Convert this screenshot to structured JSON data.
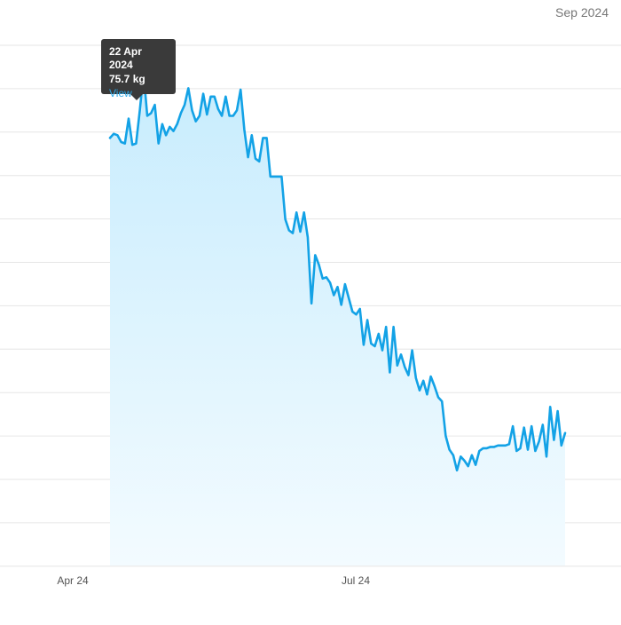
{
  "header": {
    "range_label": "Sep 2024"
  },
  "tooltip": {
    "date": "22 Apr 2024",
    "value": "75.7 kg",
    "link": "View"
  },
  "colors": {
    "line": "#13a2e6",
    "fill_top": "#c7ecfd",
    "fill_bottom": "#f3fbff",
    "grid": "#e6e6e6",
    "marker": "#e36a9a"
  },
  "chart_data": {
    "type": "area",
    "x_tick_labels": [
      "Apr 24",
      "Jul 24"
    ],
    "highlighted_point": {
      "x": "2024-04-22",
      "y": 75.7
    },
    "series": [
      {
        "values": [
          [
            "2024-04-13",
            71.0
          ],
          [
            "2024-04-14",
            71.3
          ],
          [
            "2024-04-15",
            71.2
          ],
          [
            "2024-04-16",
            70.7
          ],
          [
            "2024-04-17",
            70.6
          ],
          [
            "2024-04-18",
            72.4
          ],
          [
            "2024-04-19",
            70.5
          ],
          [
            "2024-04-20",
            70.6
          ],
          [
            "2024-04-21",
            73.0
          ],
          [
            "2024-04-22",
            75.7
          ],
          [
            "2024-04-23",
            72.6
          ],
          [
            "2024-04-24",
            72.8
          ],
          [
            "2024-04-25",
            73.4
          ],
          [
            "2024-04-26",
            70.6
          ],
          [
            "2024-04-27",
            72.0
          ],
          [
            "2024-04-28",
            71.2
          ],
          [
            "2024-04-29",
            71.8
          ],
          [
            "2024-04-30",
            71.5
          ],
          [
            "2024-05-01",
            72.0
          ],
          [
            "2024-05-02",
            72.8
          ],
          [
            "2024-05-03",
            73.4
          ],
          [
            "2024-05-04",
            74.6
          ],
          [
            "2024-05-05",
            73.0
          ],
          [
            "2024-05-06",
            72.2
          ],
          [
            "2024-05-07",
            72.6
          ],
          [
            "2024-05-08",
            74.2
          ],
          [
            "2024-05-09",
            72.7
          ],
          [
            "2024-05-10",
            74.0
          ],
          [
            "2024-05-11",
            74.0
          ],
          [
            "2024-05-12",
            73.1
          ],
          [
            "2024-05-13",
            72.6
          ],
          [
            "2024-05-14",
            74.0
          ],
          [
            "2024-05-15",
            72.6
          ],
          [
            "2024-05-16",
            72.6
          ],
          [
            "2024-05-17",
            73.0
          ],
          [
            "2024-05-18",
            74.5
          ],
          [
            "2024-05-19",
            71.6
          ],
          [
            "2024-05-20",
            69.6
          ],
          [
            "2024-05-21",
            71.2
          ],
          [
            "2024-05-22",
            69.5
          ],
          [
            "2024-05-23",
            69.3
          ],
          [
            "2024-05-24",
            71.0
          ],
          [
            "2024-05-25",
            71.0
          ],
          [
            "2024-05-26",
            68.2
          ],
          [
            "2024-05-27",
            68.2
          ],
          [
            "2024-05-28",
            68.2
          ],
          [
            "2024-05-29",
            68.2
          ],
          [
            "2024-05-30",
            65.1
          ],
          [
            "2024-05-31",
            64.3
          ],
          [
            "2024-06-01",
            64.1
          ],
          [
            "2024-06-02",
            65.6
          ],
          [
            "2024-06-03",
            64.2
          ],
          [
            "2024-06-04",
            65.6
          ],
          [
            "2024-06-05",
            63.8
          ],
          [
            "2024-06-06",
            59.0
          ],
          [
            "2024-06-07",
            62.5
          ],
          [
            "2024-06-08",
            61.8
          ],
          [
            "2024-06-09",
            60.8
          ],
          [
            "2024-06-10",
            60.9
          ],
          [
            "2024-06-11",
            60.5
          ],
          [
            "2024-06-12",
            59.6
          ],
          [
            "2024-06-13",
            60.2
          ],
          [
            "2024-06-14",
            58.9
          ],
          [
            "2024-06-15",
            60.4
          ],
          [
            "2024-06-16",
            59.4
          ],
          [
            "2024-06-17",
            58.4
          ],
          [
            "2024-06-18",
            58.2
          ],
          [
            "2024-06-19",
            58.6
          ],
          [
            "2024-06-20",
            56.0
          ],
          [
            "2024-06-21",
            57.8
          ],
          [
            "2024-06-22",
            56.1
          ],
          [
            "2024-06-23",
            55.9
          ],
          [
            "2024-06-24",
            56.8
          ],
          [
            "2024-06-25",
            55.6
          ],
          [
            "2024-06-26",
            57.3
          ],
          [
            "2024-06-27",
            54.0
          ],
          [
            "2024-06-28",
            57.3
          ],
          [
            "2024-06-29",
            54.5
          ],
          [
            "2024-06-30",
            55.3
          ],
          [
            "2024-07-01",
            54.4
          ],
          [
            "2024-07-02",
            53.8
          ],
          [
            "2024-07-03",
            55.6
          ],
          [
            "2024-07-04",
            53.6
          ],
          [
            "2024-07-05",
            52.7
          ],
          [
            "2024-07-06",
            53.4
          ],
          [
            "2024-07-07",
            52.4
          ],
          [
            "2024-07-08",
            53.7
          ],
          [
            "2024-07-09",
            53.0
          ],
          [
            "2024-07-10",
            52.2
          ],
          [
            "2024-07-11",
            51.9
          ],
          [
            "2024-07-12",
            49.4
          ],
          [
            "2024-07-13",
            48.4
          ],
          [
            "2024-07-14",
            48.0
          ],
          [
            "2024-07-15",
            46.9
          ],
          [
            "2024-07-16",
            47.9
          ],
          [
            "2024-07-17",
            47.6
          ],
          [
            "2024-07-18",
            47.2
          ],
          [
            "2024-07-19",
            48.0
          ],
          [
            "2024-07-20",
            47.3
          ],
          [
            "2024-07-21",
            48.3
          ],
          [
            "2024-07-22",
            48.5
          ],
          [
            "2024-07-23",
            48.5
          ],
          [
            "2024-07-24",
            48.6
          ],
          [
            "2024-07-25",
            48.6
          ],
          [
            "2024-07-26",
            48.7
          ],
          [
            "2024-07-27",
            48.7
          ],
          [
            "2024-07-28",
            48.7
          ],
          [
            "2024-07-29",
            48.8
          ],
          [
            "2024-07-30",
            50.1
          ],
          [
            "2024-07-31",
            48.3
          ],
          [
            "2024-08-01",
            48.5
          ],
          [
            "2024-08-02",
            50.0
          ],
          [
            "2024-08-03",
            48.4
          ],
          [
            "2024-08-04",
            50.1
          ],
          [
            "2024-08-05",
            48.3
          ],
          [
            "2024-08-06",
            49.0
          ],
          [
            "2024-08-07",
            50.2
          ],
          [
            "2024-08-08",
            47.9
          ],
          [
            "2024-08-09",
            51.5
          ],
          [
            "2024-08-10",
            49.1
          ],
          [
            "2024-08-11",
            51.2
          ],
          [
            "2024-08-12",
            48.7
          ],
          [
            "2024-08-13",
            49.6
          ]
        ]
      }
    ],
    "ylim": [
      40.0,
      81.0
    ],
    "grid": true,
    "legend": false
  }
}
